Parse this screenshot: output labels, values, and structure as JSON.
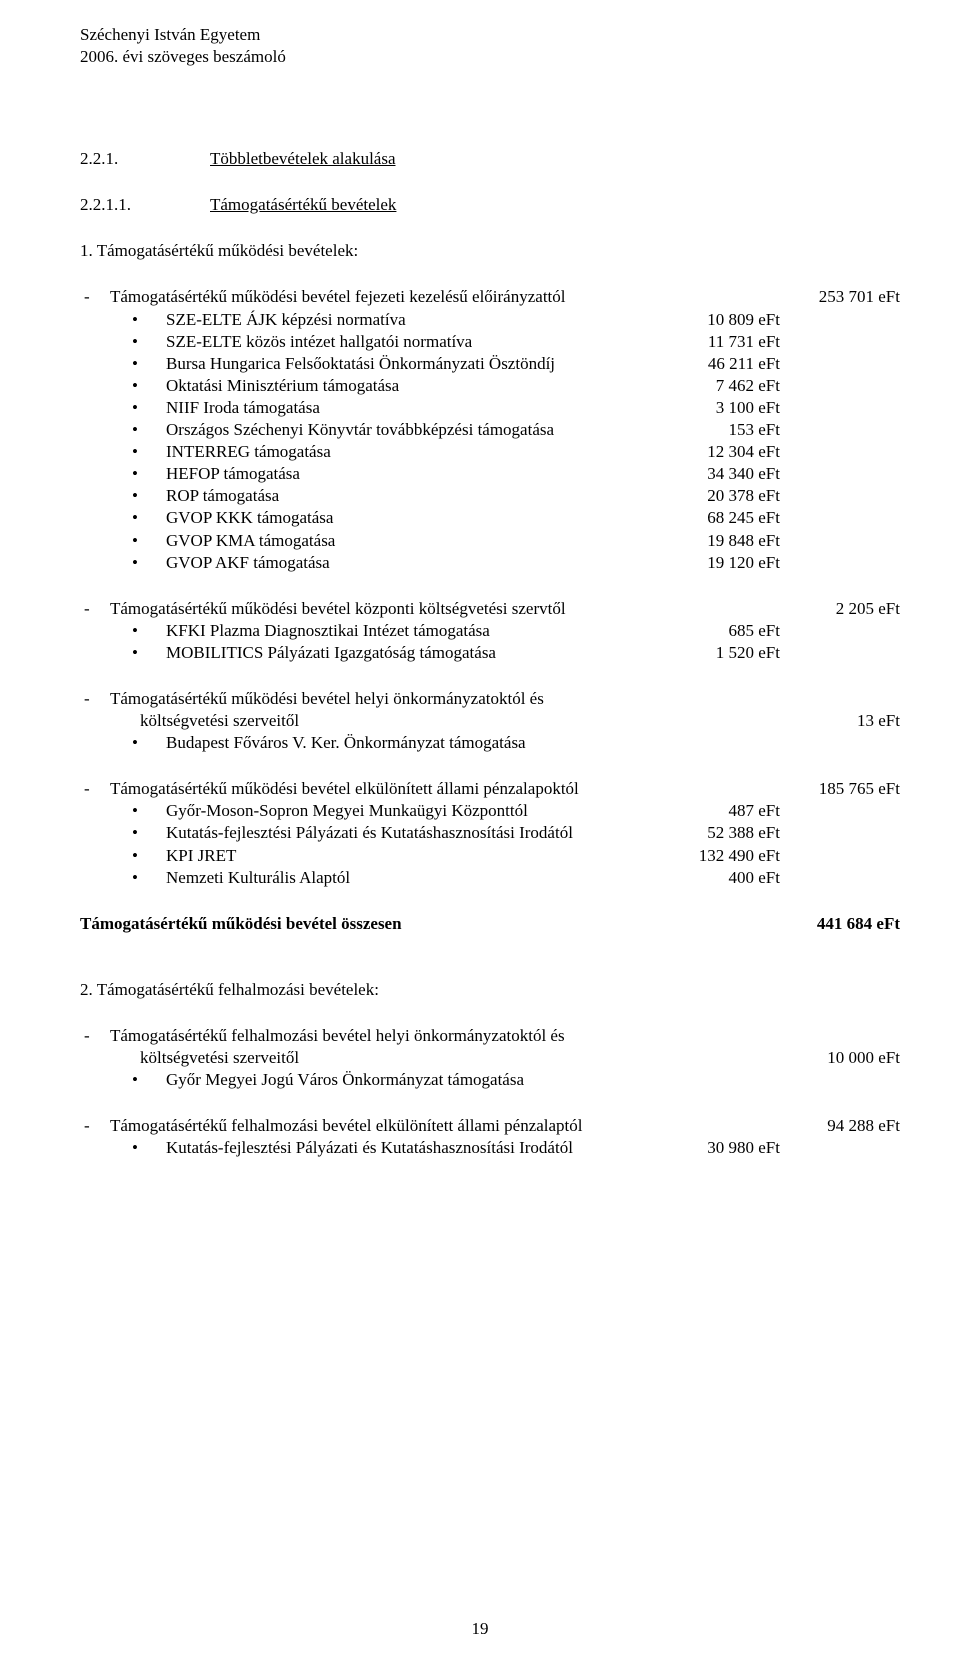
{
  "header": {
    "line1": "Széchenyi István Egyetem",
    "line2": "2006. évi szöveges beszámoló"
  },
  "sectionHeading": {
    "num": "2.2.1.",
    "title": "Többletbevételek alakulása"
  },
  "subHeading": {
    "num": "2.2.1.1.",
    "title": "Támogatásértékű bevételek"
  },
  "listTitle1": "1. Támogatásértékű működési bevételek:",
  "block1": {
    "lead": "Támogatásértékű működési bevétel fejezeti kezelésű előirányzattól",
    "leadVal": "253 701 eFt",
    "items": [
      {
        "label": "SZE-ELTE ÁJK képzési normatíva",
        "val": "10 809 eFt"
      },
      {
        "label": "SZE-ELTE közös intézet hallgatói normatíva",
        "val": "11 731 eFt"
      },
      {
        "label": "Bursa Hungarica Felsőoktatási Önkormányzati Ösztöndíj",
        "val": "46 211 eFt"
      },
      {
        "label": "Oktatási Minisztérium támogatása",
        "val": "7 462 eFt"
      },
      {
        "label": "NIIF Iroda támogatása",
        "val": "3 100 eFt"
      },
      {
        "label": "Országos Széchenyi Könyvtár továbbképzési támogatása",
        "val": "153 eFt"
      },
      {
        "label": "INTERREG támogatása",
        "val": "12 304 eFt"
      },
      {
        "label": "HEFOP támogatása",
        "val": "34 340 eFt"
      },
      {
        "label": "ROP támogatása",
        "val": "20 378 eFt"
      },
      {
        "label": "GVOP KKK támogatása",
        "val": "68 245 eFt"
      },
      {
        "label": "GVOP KMA támogatása",
        "val": "19 848 eFt"
      },
      {
        "label": "GVOP AKF támogatása",
        "val": "19 120 eFt"
      }
    ]
  },
  "block2": {
    "lead": "Támogatásértékű működési bevétel központi költségvetési szervtől",
    "leadVal": "2 205 eFt",
    "items": [
      {
        "label": "KFKI Plazma Diagnosztikai Intézet támogatása",
        "val": "685 eFt"
      },
      {
        "label": "MOBILITICS Pályázati Igazgatóság támogatása",
        "val": "1 520 eFt"
      }
    ]
  },
  "block3": {
    "lead1": "Támogatásértékű működési bevétel helyi önkormányzatoktól és",
    "lead2": "költségvetési szerveitől",
    "leadVal": "13 eFt",
    "items": [
      {
        "label": "Budapest Főváros V. Ker. Önkormányzat támogatása",
        "val": ""
      }
    ]
  },
  "block4": {
    "lead": "Támogatásértékű működési bevétel elkülönített állami pénzalapoktól",
    "leadVal": "185 765 eFt",
    "items": [
      {
        "label": "Győr-Moson-Sopron Megyei Munkaügyi Központtól",
        "val": "487 eFt"
      },
      {
        "label": "Kutatás-fejlesztési Pályázati és Kutatáshasznosítási Irodától",
        "val": "52 388 eFt"
      },
      {
        "label": "KPI JRET",
        "val": "132 490 eFt"
      },
      {
        "label": "Nemzeti Kulturális Alaptól",
        "val": "400 eFt"
      }
    ]
  },
  "total1": {
    "label": "Támogatásértékű működési bevétel összesen",
    "val": "441 684 eFt"
  },
  "listTitle2": "2. Támogatásértékű felhalmozási bevételek:",
  "block5": {
    "lead1": "Támogatásértékű felhalmozási bevétel helyi önkormányzatoktól és",
    "lead2": "költségvetési szerveitől",
    "leadVal": "10 000 eFt",
    "items": [
      {
        "label": "Győr Megyei Jogú Város Önkormányzat támogatása",
        "val": ""
      }
    ]
  },
  "block6": {
    "lead": "Támogatásértékű felhalmozási bevétel elkülönített állami pénzalaptól",
    "leadVal": "94 288 eFt",
    "items": [
      {
        "label": "Kutatás-fejlesztési Pályázati és Kutatáshasznosítási Irodától",
        "val": "30 980 eFt"
      }
    ]
  },
  "pageNum": "19",
  "dash": "-",
  "bullet": "•"
}
